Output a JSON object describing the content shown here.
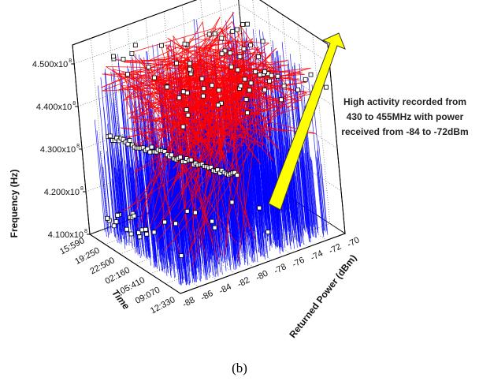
{
  "chart_data": {
    "type": "scatter",
    "projection": "3d",
    "y_axis": {
      "label": "Frequency (Hz)",
      "ticks": [
        "4.100x10",
        "4.200x10",
        "4.300x10",
        "4.400x10",
        "4.500x10"
      ],
      "exponent": "8",
      "range": [
        410000000,
        455000000
      ]
    },
    "x_axis": {
      "label": "Time",
      "ticks": [
        "15:590",
        "19:250",
        "22:500",
        "02:160",
        "05:410",
        "09:070",
        "12:330"
      ]
    },
    "z_axis": {
      "label": "Returned Power (dBm)",
      "ticks": [
        "-88",
        "-86",
        "-84",
        "-82",
        "-80",
        "-78",
        "-76",
        "-74",
        "-72",
        "-70"
      ],
      "range": [
        -88,
        -70
      ]
    },
    "annotation": {
      "lines": [
        "High activity recorded from",
        "430 to 455MHz with power",
        "received from -84 to -72dBm"
      ],
      "arrow_color": "#FFFF00"
    },
    "series_colors": {
      "stems": "#0000FF",
      "lines": "#FF0000",
      "markers": "#000000"
    },
    "grid": true,
    "caption": "(b)"
  }
}
